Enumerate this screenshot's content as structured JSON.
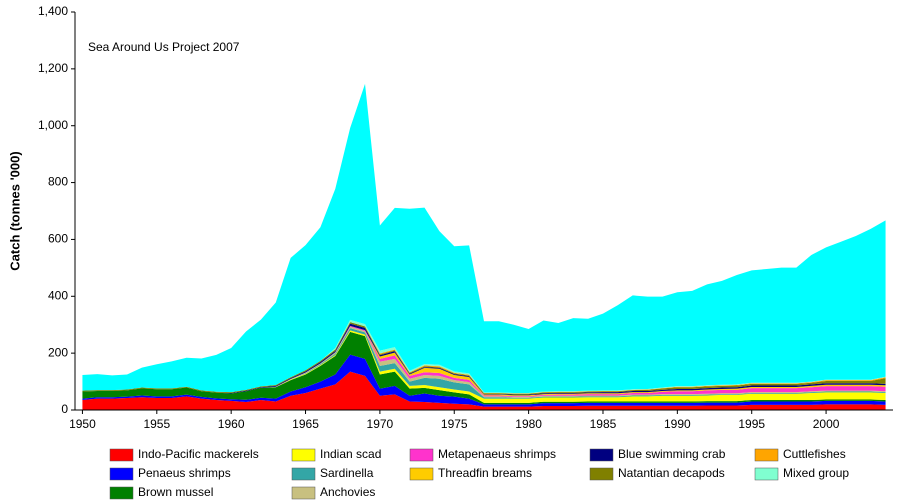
{
  "chart_data": {
    "type": "stacked-area",
    "annotation": "Sea Around Us Project 2007",
    "y_label": "Catch (tonnes '000)",
    "x": [
      1950,
      1951,
      1952,
      1953,
      1954,
      1955,
      1956,
      1957,
      1958,
      1959,
      1960,
      1961,
      1962,
      1963,
      1964,
      1965,
      1966,
      1967,
      1968,
      1969,
      1970,
      1971,
      1972,
      1973,
      1974,
      1975,
      1976,
      1977,
      1978,
      1979,
      1980,
      1981,
      1982,
      1983,
      1984,
      1985,
      1986,
      1987,
      1988,
      1989,
      1990,
      1991,
      1992,
      1993,
      1994,
      1995,
      1996,
      1997,
      1998,
      1999,
      2000,
      2001,
      2002,
      2003,
      2004
    ],
    "xlim": [
      1949.5,
      2004.5
    ],
    "xticks": [
      1950,
      1955,
      1960,
      1965,
      1970,
      1975,
      1980,
      1985,
      1990,
      1995,
      2000
    ],
    "ylim": [
      0,
      1400
    ],
    "yticks": [
      0,
      200,
      400,
      600,
      800,
      {
        "value": 1000,
        "label": "1,000"
      },
      {
        "value": 1200,
        "label": "1,200"
      },
      {
        "value": 1400,
        "label": "1,400"
      }
    ],
    "series": [
      {
        "name": "Indo-Pacific mackerels",
        "color": "#ff0000",
        "values": [
          35,
          40,
          40,
          42,
          45,
          42,
          42,
          48,
          40,
          35,
          32,
          28,
          35,
          30,
          50,
          60,
          75,
          90,
          135,
          120,
          50,
          55,
          30,
          28,
          25,
          22,
          20,
          12,
          12,
          12,
          12,
          14,
          14,
          14,
          15,
          15,
          15,
          15,
          15,
          15,
          15,
          15,
          16,
          16,
          16,
          18,
          18,
          18,
          18,
          18,
          20,
          20,
          20,
          20,
          18
        ]
      },
      {
        "name": "Penaeus shrimps",
        "color": "#0000ff",
        "values": [
          5,
          5,
          5,
          5,
          6,
          6,
          6,
          6,
          6,
          6,
          6,
          8,
          8,
          10,
          15,
          20,
          25,
          35,
          60,
          60,
          25,
          30,
          20,
          30,
          25,
          25,
          20,
          8,
          8,
          8,
          8,
          10,
          10,
          10,
          10,
          10,
          10,
          10,
          10,
          10,
          10,
          10,
          10,
          10,
          10,
          12,
          12,
          12,
          12,
          12,
          12,
          12,
          12,
          12,
          12
        ]
      },
      {
        "name": "Brown mussel",
        "color": "#008000",
        "values": [
          25,
          22,
          22,
          22,
          25,
          25,
          25,
          25,
          20,
          20,
          20,
          30,
          35,
          40,
          40,
          45,
          55,
          65,
          80,
          80,
          50,
          50,
          25,
          20,
          20,
          15,
          15,
          5,
          5,
          5,
          5,
          5,
          5,
          5,
          5,
          5,
          5,
          5,
          5,
          5,
          5,
          5,
          5,
          5,
          5,
          5,
          5,
          5,
          5,
          5,
          5,
          5,
          5,
          5,
          5
        ]
      },
      {
        "name": "Indian scad",
        "color": "#ffff00",
        "values": [
          0,
          0,
          0,
          0,
          0,
          0,
          0,
          0,
          0,
          0,
          0,
          0,
          0,
          0,
          2,
          2,
          3,
          3,
          5,
          5,
          10,
          10,
          10,
          10,
          10,
          10,
          10,
          15,
          15,
          15,
          15,
          15,
          15,
          15,
          15,
          15,
          15,
          18,
          18,
          20,
          20,
          20,
          20,
          22,
          22,
          22,
          22,
          22,
          22,
          25,
          25,
          25,
          25,
          25,
          25
        ]
      },
      {
        "name": "Sardinella",
        "color": "#33a6a6",
        "values": [
          0,
          0,
          0,
          0,
          0,
          0,
          0,
          0,
          0,
          0,
          0,
          0,
          0,
          0,
          0,
          2,
          3,
          5,
          8,
          8,
          20,
          20,
          15,
          25,
          30,
          25,
          25,
          5,
          5,
          3,
          3,
          3,
          3,
          3,
          3,
          3,
          3,
          3,
          3,
          3,
          3,
          3,
          3,
          3,
          3,
          3,
          3,
          3,
          3,
          3,
          3,
          3,
          3,
          3,
          3
        ]
      },
      {
        "name": "Anchovies",
        "color": "#c8c080",
        "values": [
          0,
          0,
          0,
          0,
          0,
          0,
          0,
          0,
          0,
          0,
          0,
          0,
          0,
          2,
          2,
          3,
          3,
          5,
          5,
          5,
          15,
          15,
          10,
          10,
          10,
          8,
          8,
          3,
          3,
          3,
          3,
          3,
          3,
          3,
          3,
          3,
          3,
          3,
          3,
          3,
          3,
          3,
          3,
          3,
          3,
          3,
          3,
          3,
          3,
          3,
          3,
          3,
          3,
          3,
          3
        ]
      },
      {
        "name": "Metapenaeus shrimps",
        "color": "#ff33cc",
        "values": [
          0,
          0,
          0,
          0,
          0,
          0,
          0,
          0,
          0,
          0,
          0,
          0,
          0,
          0,
          0,
          0,
          0,
          0,
          3,
          3,
          10,
          12,
          10,
          10,
          10,
          8,
          8,
          3,
          3,
          3,
          3,
          3,
          4,
          4,
          5,
          5,
          5,
          6,
          6,
          8,
          10,
          10,
          12,
          12,
          12,
          14,
          14,
          14,
          14,
          14,
          16,
          16,
          16,
          16,
          16
        ]
      },
      {
        "name": "Threadfin breams",
        "color": "#ffcc00",
        "values": [
          0,
          0,
          0,
          0,
          0,
          0,
          0,
          0,
          0,
          0,
          0,
          0,
          0,
          0,
          0,
          0,
          0,
          0,
          0,
          0,
          8,
          10,
          5,
          15,
          15,
          10,
          10,
          3,
          3,
          3,
          3,
          3,
          3,
          3,
          3,
          3,
          3,
          3,
          3,
          3,
          3,
          3,
          3,
          3,
          4,
          4,
          4,
          4,
          4,
          5,
          5,
          5,
          5,
          5,
          5
        ]
      },
      {
        "name": "Blue swimming crab",
        "color": "#000080",
        "values": [
          0,
          0,
          0,
          0,
          0,
          0,
          0,
          0,
          0,
          0,
          2,
          2,
          2,
          3,
          3,
          4,
          5,
          5,
          8,
          8,
          5,
          5,
          3,
          3,
          3,
          3,
          3,
          2,
          2,
          2,
          2,
          3,
          3,
          3,
          3,
          4,
          4,
          4,
          4,
          4,
          5,
          5,
          5,
          5,
          5,
          5,
          5,
          5,
          5,
          5,
          5,
          5,
          5,
          5,
          5
        ]
      },
      {
        "name": "Natantian decapods",
        "color": "#808000",
        "values": [
          3,
          3,
          3,
          3,
          3,
          3,
          3,
          3,
          3,
          3,
          3,
          3,
          3,
          3,
          3,
          4,
          4,
          5,
          5,
          5,
          3,
          3,
          3,
          3,
          3,
          3,
          3,
          3,
          3,
          3,
          3,
          3,
          3,
          3,
          3,
          3,
          3,
          3,
          4,
          5,
          6,
          6,
          6,
          6,
          6,
          6,
          6,
          6,
          6,
          6,
          8,
          8,
          8,
          8,
          20
        ]
      },
      {
        "name": "Cuttlefishes",
        "color": "#ffa500",
        "values": [
          0,
          0,
          0,
          0,
          0,
          0,
          0,
          0,
          0,
          0,
          0,
          0,
          0,
          0,
          0,
          0,
          0,
          0,
          0,
          0,
          3,
          3,
          2,
          3,
          3,
          2,
          2,
          1,
          1,
          1,
          1,
          1,
          1,
          1,
          1,
          1,
          1,
          1,
          1,
          1,
          2,
          2,
          2,
          2,
          2,
          2,
          2,
          2,
          2,
          2,
          3,
          3,
          3,
          3,
          3
        ]
      },
      {
        "name": "Mixed group",
        "color": "#80ffd0",
        "values": [
          0,
          0,
          0,
          0,
          0,
          0,
          0,
          0,
          0,
          0,
          0,
          0,
          0,
          0,
          0,
          0,
          0,
          5,
          8,
          8,
          10,
          8,
          5,
          5,
          5,
          5,
          5,
          2,
          2,
          2,
          2,
          2,
          2,
          2,
          2,
          2,
          2,
          2,
          2,
          2,
          2,
          2,
          2,
          2,
          2,
          2,
          2,
          2,
          2,
          2,
          2,
          2,
          2,
          2,
          2
        ]
      },
      {
        "color": "#00ffff",
        "values": [
          55,
          56,
          52,
          53,
          70,
          85,
          95,
          102,
          112,
          130,
          155,
          205,
          235,
          290,
          420,
          440,
          470,
          560,
          675,
          845,
          440,
          490,
          570,
          550,
          470,
          440,
          450,
          250,
          250,
          240,
          225,
          250,
          240,
          257,
          253,
          270,
          300,
          330,
          325,
          320,
          330,
          335,
          355,
          365,
          385,
          395,
          400,
          405,
          405,
          445,
          465,
          485,
          505,
          530,
          550
        ]
      }
    ]
  }
}
